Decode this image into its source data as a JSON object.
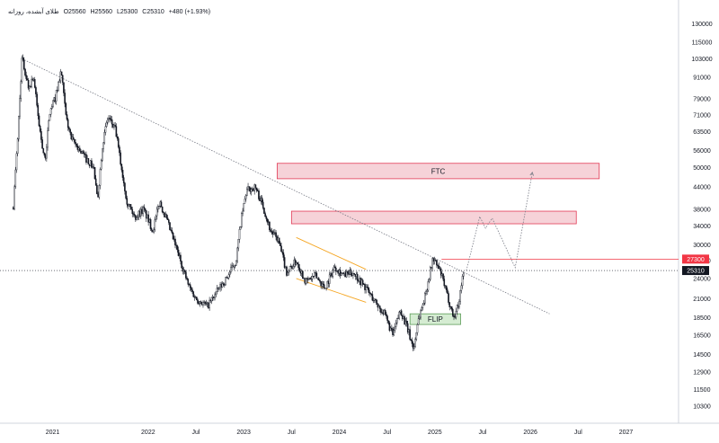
{
  "legend": {
    "symbol": "طلای آبشده، روزانه",
    "open": "O25560",
    "high": "H25560",
    "low": "L25300",
    "close": "C25310",
    "change": "+480 (+1.93%)"
  },
  "chart_data": {
    "type": "candlestick",
    "title": "",
    "ylabel": "",
    "xlabel": "",
    "y_scale": "log",
    "ylim": [
      9200,
      152000
    ],
    "xlim": [
      2020.45,
      2027.55
    ],
    "y_ticks": [
      "150000",
      "130000",
      "115000",
      "103000",
      "91000",
      "79000",
      "71000",
      "63500",
      "56000",
      "50000",
      "44000",
      "38000",
      "34000",
      "30000",
      "27000",
      "24000",
      "21000",
      "18500",
      "16500",
      "14500",
      "12900",
      "11500",
      "10300"
    ],
    "x_ticks": [
      {
        "label": "2021",
        "t": 2021.0
      },
      {
        "label": "2022",
        "t": 2022.0
      },
      {
        "label": "Jul",
        "t": 2022.5
      },
      {
        "label": "2023",
        "t": 2023.0
      },
      {
        "label": "Jul",
        "t": 2023.5
      },
      {
        "label": "2024",
        "t": 2024.0
      },
      {
        "label": "Jul",
        "t": 2024.5
      },
      {
        "label": "2025",
        "t": 2025.0
      },
      {
        "label": "Jul",
        "t": 2025.5
      },
      {
        "label": "2026",
        "t": 2026.0
      },
      {
        "label": "Jul",
        "t": 2026.5
      },
      {
        "label": "2027",
        "t": 2027.0
      }
    ],
    "price_path": [
      [
        2020.59,
        39000
      ],
      [
        2020.63,
        58000
      ],
      [
        2020.68,
        103000
      ],
      [
        2020.75,
        85000
      ],
      [
        2020.8,
        92000
      ],
      [
        2020.86,
        66000
      ],
      [
        2020.92,
        52000
      ],
      [
        2020.97,
        72000
      ],
      [
        2021.03,
        80000
      ],
      [
        2021.09,
        95000
      ],
      [
        2021.14,
        70000
      ],
      [
        2021.2,
        60000
      ],
      [
        2021.25,
        58000
      ],
      [
        2021.33,
        54000
      ],
      [
        2021.43,
        50000
      ],
      [
        2021.47,
        40000
      ],
      [
        2021.52,
        58000
      ],
      [
        2021.58,
        70000
      ],
      [
        2021.66,
        64000
      ],
      [
        2021.72,
        50000
      ],
      [
        2021.78,
        40000
      ],
      [
        2021.86,
        36000
      ],
      [
        2021.95,
        38000
      ],
      [
        2022.05,
        33000
      ],
      [
        2022.12,
        40000
      ],
      [
        2022.2,
        35000
      ],
      [
        2022.32,
        28000
      ],
      [
        2022.42,
        23000
      ],
      [
        2022.5,
        21000
      ],
      [
        2022.62,
        20000
      ],
      [
        2022.72,
        22000
      ],
      [
        2022.82,
        24000
      ],
      [
        2022.92,
        27000
      ],
      [
        2022.97,
        35000
      ],
      [
        2023.03,
        43000
      ],
      [
        2023.12,
        44000
      ],
      [
        2023.2,
        39000
      ],
      [
        2023.28,
        33000
      ],
      [
        2023.36,
        31000
      ],
      [
        2023.45,
        25000
      ],
      [
        2023.55,
        27000
      ],
      [
        2023.65,
        23500
      ],
      [
        2023.75,
        24500
      ],
      [
        2023.85,
        22500
      ],
      [
        2023.95,
        26000
      ],
      [
        2024.05,
        24500
      ],
      [
        2024.15,
        25000
      ],
      [
        2024.28,
        22500
      ],
      [
        2024.38,
        20500
      ],
      [
        2024.47,
        19000
      ],
      [
        2024.56,
        16500
      ],
      [
        2024.64,
        19500
      ],
      [
        2024.72,
        17000
      ],
      [
        2024.78,
        15000
      ],
      [
        2024.82,
        18000
      ],
      [
        2024.9,
        21500
      ],
      [
        2024.98,
        27500
      ],
      [
        2025.06,
        25000
      ],
      [
        2025.14,
        21000
      ],
      [
        2025.2,
        18500
      ],
      [
        2025.25,
        20500
      ],
      [
        2025.3,
        25310
      ]
    ],
    "drawings": {
      "trendline_top": {
        "p1": [
          2020.68,
          103000
        ],
        "p2": [
          2026.2,
          19000
        ]
      },
      "trendline_mid": {
        "p1": [
          2023.28,
          31000
        ],
        "p2": [
          2025.32,
          21500
        ]
      },
      "channel": {
        "upper": {
          "p1": [
            2023.55,
            31500
          ],
          "p2": [
            2024.28,
            25500
          ]
        },
        "lower": {
          "p1": [
            2023.55,
            24000
          ],
          "p2": [
            2024.28,
            20500
          ]
        }
      },
      "zones": [
        {
          "label": "FTC",
          "t1": 2023.35,
          "t2": 2026.72,
          "p_top": 51500,
          "p_bottom": 46500,
          "fill": "#f6d2d8",
          "stroke": "#e23a55"
        },
        {
          "label": "",
          "t1": 2023.5,
          "t2": 2026.48,
          "p_top": 37500,
          "p_bottom": 34500,
          "fill": "#f6d2d8",
          "stroke": "#e23a55"
        },
        {
          "label": "FLIP",
          "t1": 2024.74,
          "t2": 2025.27,
          "p_top": 19000,
          "p_bottom": 17700,
          "fill": "#d5ecd2",
          "stroke": "#5e9d5a"
        }
      ],
      "projection": [
        [
          2025.33,
          25310
        ],
        [
          2025.47,
          36200
        ],
        [
          2025.53,
          33500
        ],
        [
          2025.6,
          35800
        ],
        [
          2025.84,
          25800
        ],
        [
          2026.02,
          48500
        ]
      ],
      "resistance_line": {
        "price": 27300,
        "t_start": 2025.07
      },
      "current_price": 25310
    },
    "price_tags": [
      {
        "label": "27300",
        "price": 27300,
        "bg": "#f23645",
        "fg": "#ffffff"
      },
      {
        "label": "25310",
        "price": 25310,
        "bg": "#131722",
        "fg": "#ffffff"
      }
    ],
    "colors": {
      "candle": "#131722",
      "resistance": "#f23645",
      "channel": "#f5a623",
      "trendline": "#787b86",
      "grid": "#eef0f3"
    }
  }
}
